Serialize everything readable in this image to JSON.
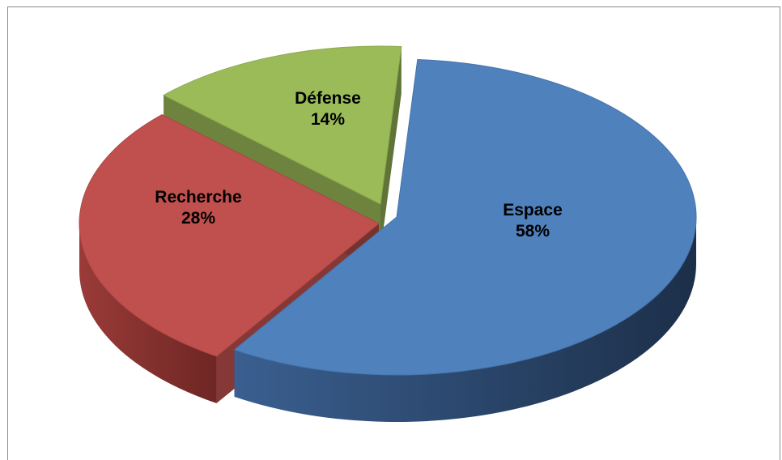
{
  "chart_data": {
    "type": "pie",
    "style": "3d-exploded",
    "title": "",
    "legend": "none",
    "slices": [
      {
        "label": "Espace",
        "percent_label": "58%",
        "value": 58,
        "color": "#4f81bd"
      },
      {
        "label": "Recherche",
        "percent_label": "28%",
        "value": 28,
        "color": "#c0504d"
      },
      {
        "label": "Défense",
        "percent_label": "14%",
        "value": 14,
        "color": "#9bbb59"
      }
    ]
  }
}
